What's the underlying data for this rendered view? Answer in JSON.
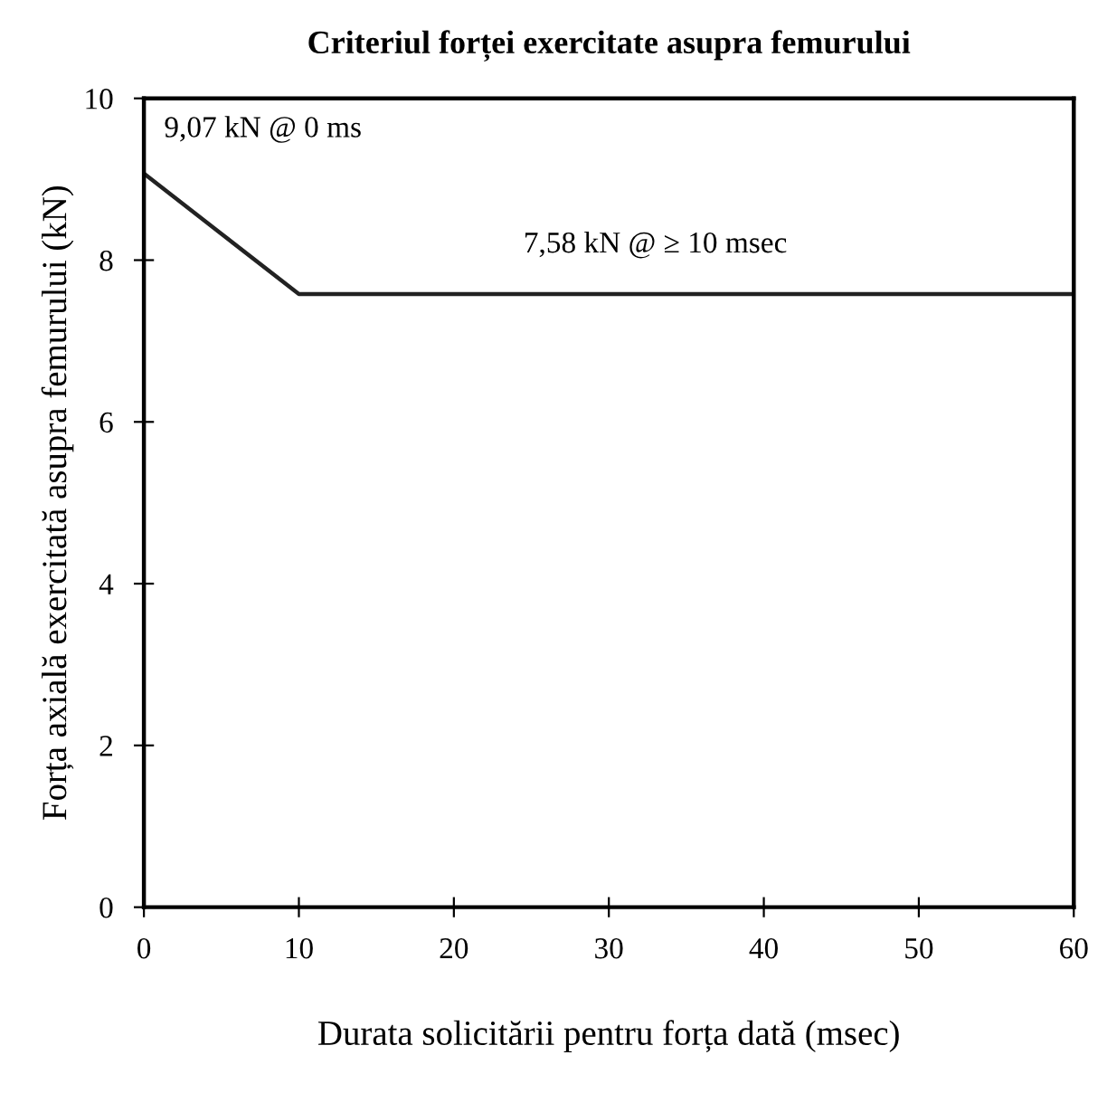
{
  "chart_data": {
    "type": "line",
    "title": "Criteriul forței exercitate asupra femurului",
    "xlabel": "Durata solicitării pentru forța dată (msec)",
    "ylabel": "Forța axială exercitată asupra femurului (kN)",
    "x": [
      0,
      10,
      60
    ],
    "series": [
      {
        "color": "#222222",
        "values": [
          9.07,
          7.58,
          7.58
        ]
      }
    ],
    "xlim": [
      0,
      60
    ],
    "xticks": [
      0,
      10,
      20,
      30,
      40,
      50,
      60
    ],
    "ylim": [
      0,
      10
    ],
    "yticks": [
      0,
      2,
      4,
      6,
      8,
      10
    ],
    "grid": false,
    "legend": false,
    "marker": "none",
    "line_style": "solid",
    "annotations": [
      {
        "text": "9,07 kN @ 0 ms",
        "x": 0,
        "y": 9.07
      },
      {
        "text": "7,58 kN @ ≥ 10 msec",
        "x": 33,
        "y": 7.58
      }
    ]
  }
}
